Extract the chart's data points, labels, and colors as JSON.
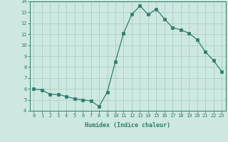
{
  "x": [
    0,
    1,
    2,
    3,
    4,
    5,
    6,
    7,
    8,
    9,
    10,
    11,
    12,
    13,
    14,
    15,
    16,
    17,
    18,
    19,
    20,
    21,
    22,
    23
  ],
  "y": [
    6.0,
    5.9,
    5.5,
    5.5,
    5.3,
    5.1,
    5.0,
    4.9,
    4.4,
    5.7,
    8.5,
    11.1,
    12.8,
    13.6,
    12.8,
    13.3,
    12.4,
    11.6,
    11.4,
    11.1,
    10.5,
    9.4,
    8.6,
    7.6
  ],
  "bg_color": "#cde8e0",
  "line_color": "#2e7d6e",
  "marker_color": "#2e7d6e",
  "grid_color": "#a8cfc5",
  "xlabel": "Humidex (Indice chaleur)",
  "ylim": [
    4,
    14
  ],
  "xlim": [
    -0.5,
    23.5
  ],
  "yticks": [
    4,
    5,
    6,
    7,
    8,
    9,
    10,
    11,
    12,
    13,
    14
  ],
  "xticks": [
    0,
    1,
    2,
    3,
    4,
    5,
    6,
    7,
    8,
    9,
    10,
    11,
    12,
    13,
    14,
    15,
    16,
    17,
    18,
    19,
    20,
    21,
    22,
    23
  ],
  "xtick_labels": [
    "0",
    "1",
    "2",
    "3",
    "4",
    "5",
    "6",
    "7",
    "8",
    "9",
    "10",
    "11",
    "12",
    "13",
    "14",
    "15",
    "16",
    "17",
    "18",
    "19",
    "20",
    "21",
    "22",
    "23"
  ],
  "font_color": "#2e7d6e",
  "tick_fontsize": 5.0,
  "xlabel_fontsize": 6.0,
  "linewidth": 0.9,
  "markersize": 2.2
}
